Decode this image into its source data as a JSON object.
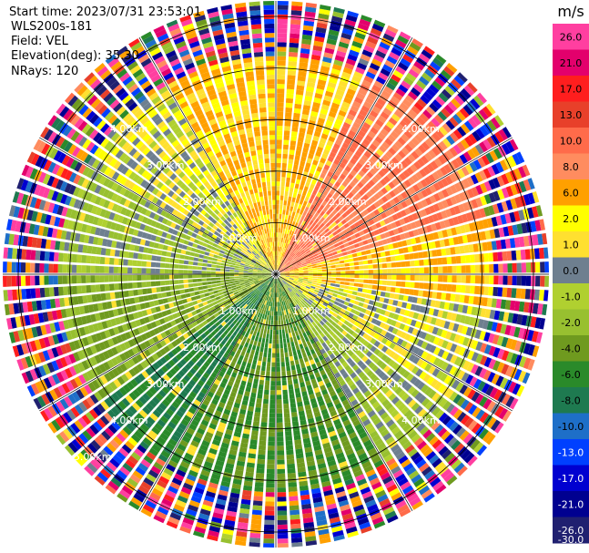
{
  "chart_data": {
    "type": "ppi",
    "metadata": {
      "start_time": "Start time: 2023/07/31 23:53:01",
      "instrument": "WLS200s-181",
      "field": "Field: VEL",
      "elevation": "Elevation(deg): 35.30",
      "nrays": "NRays: 120"
    },
    "range_rings_km": [
      1.0,
      2.0,
      3.0,
      4.0,
      5.0
    ],
    "range_ring_labels": [
      "1.00km",
      "2.00km",
      "3.00km",
      "4.00km",
      "5.00km"
    ],
    "max_range_km": 5.3,
    "n_rays": 120,
    "spoke_azimuths_deg": [
      0,
      30,
      60,
      90,
      120,
      150,
      180,
      210,
      240,
      270,
      300,
      330
    ],
    "colorbar": {
      "unit": "m/s",
      "ticks": [
        "26.0",
        "21.0",
        "17.0",
        "13.0",
        "10.0",
        "8.0",
        "6.0",
        "2.0",
        "1.0",
        "0.0",
        "-1.0",
        "-2.0",
        "-4.0",
        "-6.0",
        "-8.0",
        "-10.0",
        "-13.0",
        "-17.0",
        "-21.0",
        "-26.0",
        "-30.0"
      ],
      "colors": [
        "#ff3fa0",
        "#e3006c",
        "#ff1e1e",
        "#e8402a",
        "#ff6b4a",
        "#ff8c5f",
        "#ffa000",
        "#ffff00",
        "#ffe030",
        "#6e7f8f",
        "#b0d030",
        "#98c030",
        "#6f9a1f",
        "#2a8a2a",
        "#1e7a50",
        "#1e6fc8",
        "#0040ff",
        "#0000d0",
        "#000090",
        "#202070"
      ]
    },
    "azimuth_sectors": [
      {
        "from_deg": 0,
        "to_deg": 25,
        "mean_velocity": 2.0
      },
      {
        "from_deg": 25,
        "to_deg": 75,
        "mean_velocity": 8.0
      },
      {
        "from_deg": 75,
        "to_deg": 100,
        "mean_velocity": 2.0
      },
      {
        "from_deg": 100,
        "to_deg": 125,
        "mean_velocity": 0.0
      },
      {
        "from_deg": 125,
        "to_deg": 150,
        "mean_velocity": -2.0
      },
      {
        "from_deg": 150,
        "to_deg": 210,
        "mean_velocity": -6.0
      },
      {
        "from_deg": 210,
        "to_deg": 235,
        "mean_velocity": -8.0
      },
      {
        "from_deg": 235,
        "to_deg": 270,
        "mean_velocity": -4.0
      },
      {
        "from_deg": 270,
        "to_deg": 300,
        "mean_velocity": -2.0
      },
      {
        "from_deg": 300,
        "to_deg": 330,
        "mean_velocity": 0.0
      },
      {
        "from_deg": 330,
        "to_deg": 360,
        "mean_velocity": 2.0
      }
    ],
    "noise_outer_range_km": 4.2
  }
}
